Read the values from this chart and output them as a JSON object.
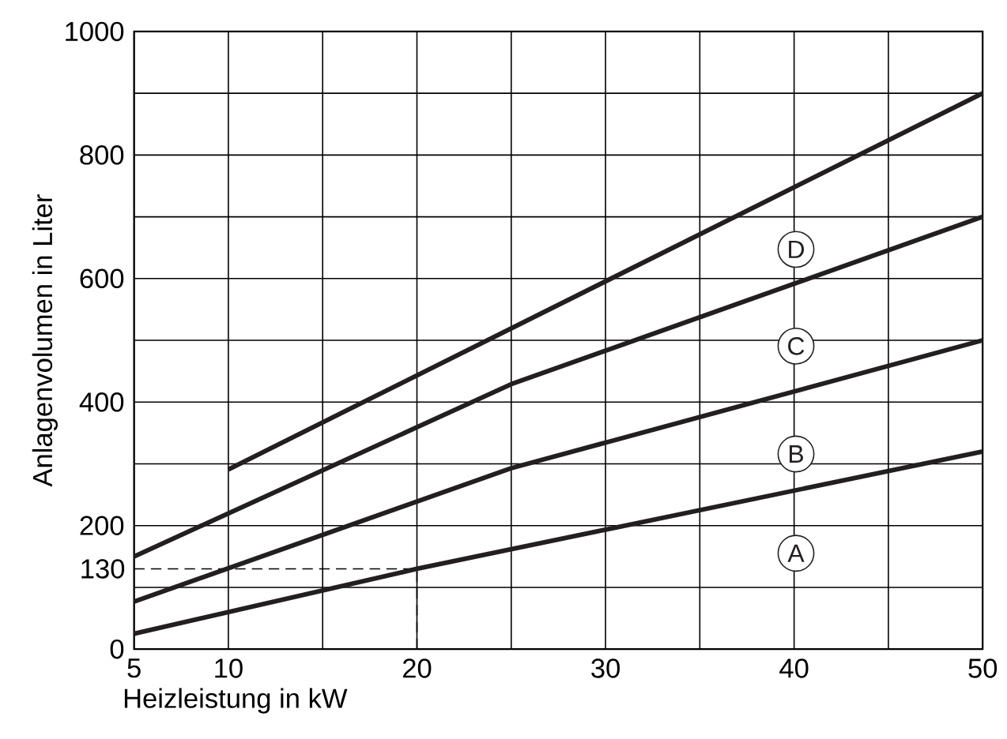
{
  "chart_data": {
    "type": "line",
    "xlabel": "Heizleistung in kW",
    "ylabel": "Anlagenvolumen in Liter",
    "xlim": [
      5,
      50
    ],
    "ylim": [
      0,
      1000
    ],
    "xticks": [
      5,
      10,
      {
        "value": 15,
        "label": null
      },
      20,
      {
        "value": 25,
        "label": null
      },
      30,
      {
        "value": 35,
        "label": null
      },
      40,
      {
        "value": 45,
        "label": null
      },
      50
    ],
    "yticks": [
      0,
      {
        "value": 100,
        "label": null
      },
      200,
      {
        "value": 300,
        "label": null
      },
      400,
      {
        "value": 500,
        "label": null
      },
      600,
      {
        "value": 700,
        "label": null
      },
      800,
      {
        "value": 900,
        "label": null
      },
      1000
    ],
    "grid": true,
    "legend": "right",
    "marker": "none",
    "line_style": "solid",
    "series": [
      {
        "name": "A",
        "color": "#231f20",
        "x": [
          5,
          20,
          50
        ],
        "values": [
          25,
          130,
          320
        ]
      },
      {
        "name": "B",
        "color": "#231f20",
        "x": [
          5,
          25,
          50
        ],
        "values": [
          77,
          293,
          500
        ]
      },
      {
        "name": "C",
        "color": "#231f20",
        "x": [
          5,
          25,
          50
        ],
        "values": [
          150,
          429,
          700
        ]
      },
      {
        "name": "D",
        "color": "#231f20",
        "x": [
          10,
          50
        ],
        "values": [
          291,
          900
        ]
      }
    ],
    "ref_lines": [
      {
        "axis": "y",
        "value": 130,
        "label": "130",
        "line_style": "dashed"
      },
      {
        "axis": "x",
        "value": 20,
        "line_style": "dashed"
      }
    ]
  }
}
